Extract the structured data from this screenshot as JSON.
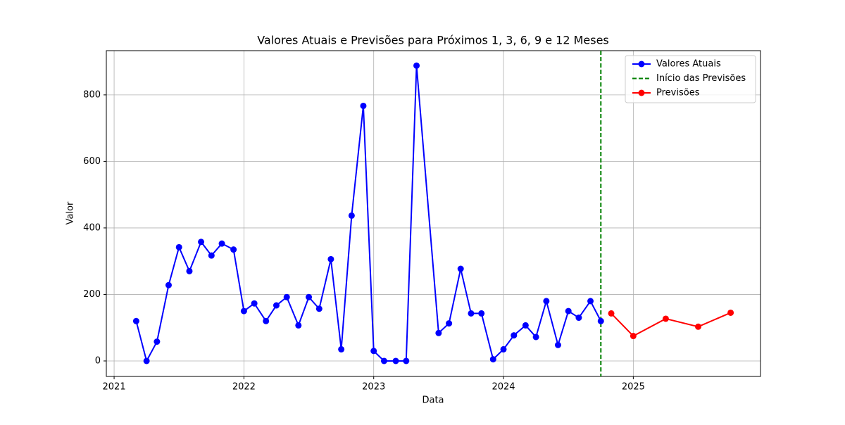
{
  "chart_data": {
    "type": "line",
    "title": "Valores Atuais e Previsões para Próximos 1, 3, 6, 9 e 12 Meses",
    "xlabel": "Data",
    "ylabel": "Valor",
    "series": [
      {
        "name": "Valores Atuais",
        "color": "#0000ff",
        "x": [
          2021.17,
          2021.25,
          2021.33,
          2021.42,
          2021.5,
          2021.58,
          2021.67,
          2021.75,
          2021.83,
          2021.92,
          2022.0,
          2022.08,
          2022.17,
          2022.25,
          2022.33,
          2022.42,
          2022.5,
          2022.58,
          2022.67,
          2022.75,
          2022.83,
          2022.92,
          2023.0,
          2023.08,
          2023.17,
          2023.25,
          2023.33,
          2023.5,
          2023.58,
          2023.67,
          2023.75,
          2023.83,
          2023.92,
          2024.0,
          2024.08,
          2024.17,
          2024.25,
          2024.33,
          2024.42,
          2024.5,
          2024.58,
          2024.67,
          2024.75
        ],
        "values": [
          120,
          0,
          58,
          228,
          342,
          270,
          358,
          317,
          353,
          335,
          150,
          173,
          120,
          167,
          192,
          107,
          192,
          157,
          306,
          35,
          437,
          767,
          30,
          0,
          0,
          0,
          888,
          84,
          113,
          277,
          143,
          143,
          5,
          35,
          77,
          107,
          72,
          180,
          48,
          150,
          130,
          180,
          120
        ]
      },
      {
        "name": "Previsões",
        "color": "#ff0000",
        "x": [
          2024.83,
          2025.0,
          2025.25,
          2025.5,
          2025.75
        ],
        "values": [
          143,
          75,
          127,
          103,
          145
        ]
      }
    ],
    "vlines": [
      {
        "name": "Início das Previsões",
        "x": 2024.75,
        "color": "#008000"
      }
    ],
    "xlim": [
      2020.94,
      2025.98
    ],
    "xticks": [
      2021,
      2022,
      2023,
      2024,
      2025
    ],
    "ylim": [
      -46.6,
      933
    ],
    "yticks": [
      0,
      200,
      400,
      600,
      800
    ],
    "grid": true,
    "legend": "upper right"
  }
}
